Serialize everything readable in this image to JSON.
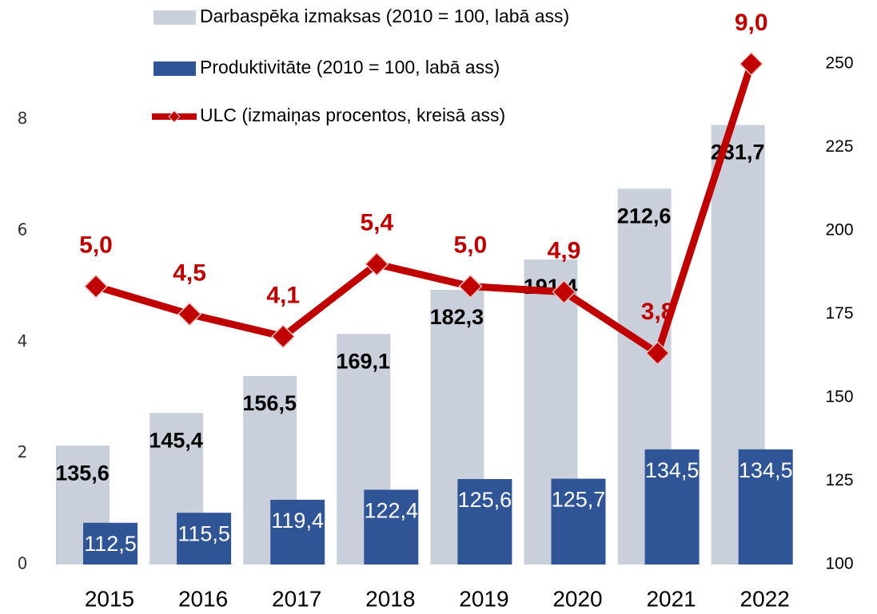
{
  "chart_data": {
    "type": "bar_line",
    "categories": [
      "2015",
      "2016",
      "2017",
      "2018",
      "2019",
      "2020",
      "2021",
      "2022"
    ],
    "series": [
      {
        "name": "Darbaspēka izmaksas (2010 = 100, labā ass)",
        "color": "#c9d0dc",
        "type": "bar",
        "axis": "y2",
        "values": [
          135.6,
          145.4,
          156.5,
          169.1,
          182.3,
          191.4,
          212.6,
          231.7
        ],
        "value_labels": [
          "135,6",
          "145,4",
          "156,5",
          "169,1",
          "182,3",
          "191,4",
          "212,6",
          "231,7"
        ]
      },
      {
        "name": "Produktivitāte (2010 = 100, labā ass)",
        "color": "#2f5597",
        "type": "bar",
        "axis": "y2",
        "values": [
          112.5,
          115.5,
          119.4,
          122.4,
          125.6,
          125.7,
          134.5,
          134.5
        ],
        "value_labels": [
          "112,5",
          "115,5",
          "119,4",
          "122,4",
          "125,6",
          "125,7",
          "134,5",
          "134,5"
        ]
      },
      {
        "name": "ULC (izmaiņas procentos, kreisā ass)",
        "color": "#c00000",
        "type": "line",
        "axis": "y",
        "values": [
          5.0,
          4.5,
          4.1,
          5.4,
          5.0,
          4.9,
          3.8,
          9.0
        ],
        "value_labels": [
          "5,0",
          "4,5",
          "4,1",
          "5,4",
          "5,0",
          "4,9",
          "3,8",
          "9,0"
        ]
      }
    ],
    "ylim": [
      0,
      9
    ],
    "yticks": [
      0,
      2,
      4,
      6,
      8
    ],
    "y2lim": [
      100,
      250
    ],
    "y2ticks": [
      100,
      125,
      150,
      175,
      200,
      225,
      250
    ]
  }
}
